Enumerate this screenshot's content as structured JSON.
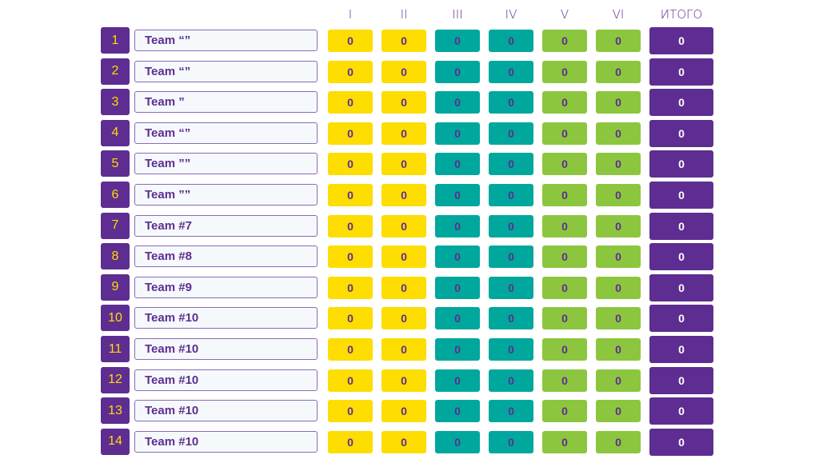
{
  "colors": {
    "purple": "#5e2d91",
    "yellow": "#fedd00",
    "teal": "#00a79d",
    "green": "#8cc63f"
  },
  "headers": [
    "I",
    "II",
    "III",
    "IV",
    "V",
    "VI",
    "ИТОГО"
  ],
  "rows": [
    {
      "n": "1",
      "team": "Team “”",
      "scores": [
        "0",
        "0",
        "0",
        "0",
        "0",
        "0"
      ],
      "total": "0"
    },
    {
      "n": "2",
      "team": "Team “”",
      "scores": [
        "0",
        "0",
        "0",
        "0",
        "0",
        "0"
      ],
      "total": "0"
    },
    {
      "n": "3",
      "team": "Team ”",
      "scores": [
        "0",
        "0",
        "0",
        "0",
        "0",
        "0"
      ],
      "total": "0"
    },
    {
      "n": "4",
      "team": "Team “”",
      "scores": [
        "0",
        "0",
        "0",
        "0",
        "0",
        "0"
      ],
      "total": "0"
    },
    {
      "n": "5",
      "team": "Team ””",
      "scores": [
        "0",
        "0",
        "0",
        "0",
        "0",
        "0"
      ],
      "total": "0"
    },
    {
      "n": "6",
      "team": "Team ””",
      "scores": [
        "0",
        "0",
        "0",
        "0",
        "0",
        "0"
      ],
      "total": "0"
    },
    {
      "n": "7",
      "team": "Team #7",
      "scores": [
        "0",
        "0",
        "0",
        "0",
        "0",
        "0"
      ],
      "total": "0"
    },
    {
      "n": "8",
      "team": "Team #8",
      "scores": [
        "0",
        "0",
        "0",
        "0",
        "0",
        "0"
      ],
      "total": "0"
    },
    {
      "n": "9",
      "team": "Team #9",
      "scores": [
        "0",
        "0",
        "0",
        "0",
        "0",
        "0"
      ],
      "total": "0"
    },
    {
      "n": "10",
      "team": "Team #10",
      "scores": [
        "0",
        "0",
        "0",
        "0",
        "0",
        "0"
      ],
      "total": "0"
    },
    {
      "n": "11",
      "team": "Team #10",
      "scores": [
        "0",
        "0",
        "0",
        "0",
        "0",
        "0"
      ],
      "total": "0"
    },
    {
      "n": "12",
      "team": "Team #10",
      "scores": [
        "0",
        "0",
        "0",
        "0",
        "0",
        "0"
      ],
      "total": "0"
    },
    {
      "n": "13",
      "team": "Team #10",
      "scores": [
        "0",
        "0",
        "0",
        "0",
        "0",
        "0"
      ],
      "total": "0"
    },
    {
      "n": "14",
      "team": "Team #10",
      "scores": [
        "0",
        "0",
        "0",
        "0",
        "0",
        "0"
      ],
      "total": "0"
    }
  ]
}
